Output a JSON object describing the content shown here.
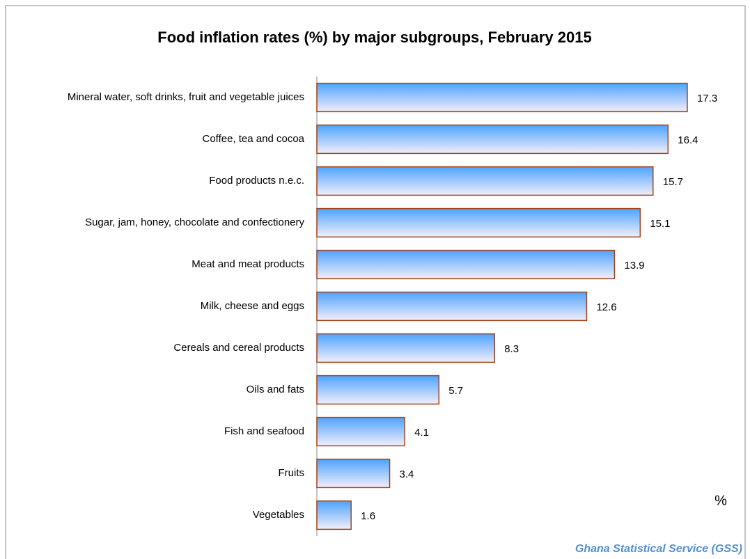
{
  "chart_data": {
    "type": "bar",
    "orientation": "horizontal",
    "title": "Food inflation rates (%) by  major subgroups, February 2015",
    "x_label": "%",
    "source": "Ghana Statistical Service (GSS)",
    "categories": [
      "Mineral water, soft drinks, fruit and vegetable juices",
      "Coffee, tea and cocoa",
      "Food products n.e.c.",
      "Sugar, jam, honey, chocolate and confectionery",
      "Meat and meat products",
      "Milk, cheese and eggs",
      "Cereals and cereal products",
      "Oils and fats",
      "Fish and seafood",
      "Fruits",
      "Vegetables"
    ],
    "values": [
      17.3,
      16.4,
      15.7,
      15.1,
      13.9,
      12.6,
      8.3,
      5.7,
      4.1,
      3.4,
      1.6
    ],
    "xlim": [
      0,
      20
    ],
    "color": "#4da3ff",
    "edge_color": "#a0441a",
    "grid": false
  }
}
